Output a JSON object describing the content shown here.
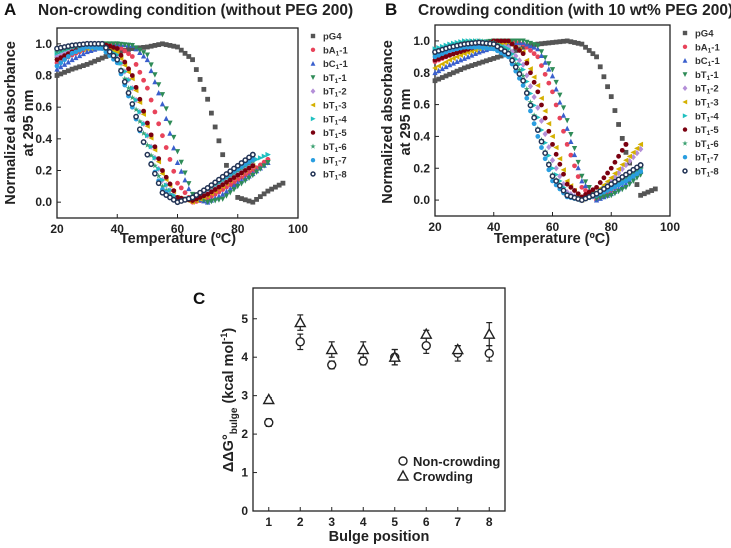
{
  "chart_data": [
    {
      "panel": "A",
      "type": "scatter",
      "title": "Non-crowding condition (without PEG 200)",
      "xlabel": "Temperature (ºC)",
      "ylabel": [
        "Normalized absorbance",
        "at 295 nm"
      ],
      "xlim": [
        20,
        100
      ],
      "ylim": [
        -0.1,
        1.1
      ],
      "xticks": [
        20,
        40,
        60,
        80,
        100
      ],
      "yticks": [
        0.0,
        0.2,
        0.4,
        0.6,
        0.8,
        1.0
      ],
      "legend_position": "right",
      "x": [
        20,
        25,
        30,
        35,
        40,
        45,
        50,
        55,
        60,
        65,
        70,
        75,
        80,
        85,
        90,
        95
      ],
      "series": [
        {
          "name": "pG4",
          "base": "pG4",
          "sub": "",
          "suffix": "",
          "color": "#555555",
          "marker": "square",
          "values": [
            0.8,
            0.84,
            0.87,
            0.91,
            0.95,
            0.97,
            0.98,
            1.0,
            0.98,
            0.9,
            0.65,
            0.3,
            0.03,
            0.0,
            0.07,
            0.12
          ]
        },
        {
          "name": "bA1-1",
          "base": "bA",
          "sub": "1",
          "suffix": "-1",
          "color": "#e8435a",
          "marker": "circle",
          "values": [
            0.88,
            0.93,
            0.97,
            1.0,
            0.99,
            0.92,
            0.72,
            0.42,
            0.12,
            0.0,
            0.02,
            0.08,
            0.14,
            0.2,
            0.27,
            null
          ]
        },
        {
          "name": "bC1-1",
          "base": "bC",
          "sub": "1",
          "suffix": "-1",
          "color": "#3a5fcd",
          "marker": "triangle-up",
          "values": [
            0.84,
            0.9,
            0.95,
            0.98,
            1.0,
            0.99,
            0.9,
            0.62,
            0.25,
            0.03,
            0.0,
            0.05,
            0.12,
            0.18,
            0.25,
            null
          ]
        },
        {
          "name": "bT1-1",
          "base": "bT",
          "sub": "1",
          "suffix": "-1",
          "color": "#2e8b57",
          "marker": "triangle-down",
          "values": [
            0.9,
            0.95,
            0.98,
            1.0,
            1.0,
            0.99,
            0.93,
            0.68,
            0.32,
            0.05,
            0.0,
            0.02,
            0.1,
            0.17,
            0.25,
            null
          ]
        },
        {
          "name": "bT1-2",
          "base": "bT",
          "sub": "1",
          "suffix": "-2",
          "color": "#b48fd8",
          "marker": "diamond",
          "values": [
            0.92,
            0.96,
            0.98,
            0.98,
            0.93,
            0.72,
            0.42,
            0.14,
            0.01,
            0.02,
            0.07,
            0.13,
            0.19,
            0.26,
            null,
            null
          ]
        },
        {
          "name": "bT1-3",
          "base": "bT",
          "sub": "1",
          "suffix": "-3",
          "color": "#d4b000",
          "marker": "triangle-left",
          "values": [
            0.9,
            0.95,
            0.97,
            0.98,
            0.95,
            0.78,
            0.48,
            0.18,
            0.03,
            0.0,
            0.04,
            0.1,
            0.17,
            0.23,
            null,
            null
          ]
        },
        {
          "name": "bT1-4",
          "base": "bT",
          "sub": "1",
          "suffix": "-4",
          "color": "#20c0c0",
          "marker": "triangle-right",
          "values": [
            0.94,
            0.98,
            0.99,
            0.98,
            0.93,
            0.72,
            0.42,
            0.14,
            0.01,
            0.03,
            0.08,
            0.14,
            0.2,
            0.26,
            0.3,
            null
          ]
        },
        {
          "name": "bT1-5",
          "base": "bT",
          "sub": "1",
          "suffix": "-5",
          "color": "#7a0010",
          "marker": "circle",
          "values": [
            0.9,
            0.95,
            0.98,
            1.0,
            0.97,
            0.8,
            0.5,
            0.2,
            0.03,
            0.01,
            0.05,
            0.11,
            0.17,
            0.23,
            null,
            null
          ]
        },
        {
          "name": "bT1-6",
          "base": "bT",
          "sub": "1",
          "suffix": "-6",
          "color": "#3aa070",
          "marker": "star",
          "values": [
            0.95,
            0.98,
            0.99,
            0.98,
            0.9,
            0.66,
            0.36,
            0.1,
            0.0,
            0.03,
            0.08,
            0.14,
            0.2,
            0.26,
            null,
            null
          ]
        },
        {
          "name": "bT1-7",
          "base": "bT",
          "sub": "1",
          "suffix": "-7",
          "color": "#2a9ee0",
          "marker": "circle",
          "values": [
            0.86,
            0.94,
            0.98,
            0.97,
            0.88,
            0.6,
            0.3,
            0.08,
            0.0,
            0.03,
            0.09,
            0.15,
            0.21,
            0.27,
            null,
            null
          ]
        },
        {
          "name": "bT1-8",
          "base": "bT",
          "sub": "1",
          "suffix": "-8",
          "color": "#223355",
          "marker": "ring",
          "values": [
            0.97,
            0.99,
            1.0,
            1.0,
            0.9,
            0.62,
            0.3,
            0.06,
            0.0,
            0.03,
            0.09,
            0.16,
            0.23,
            0.3,
            null,
            null
          ]
        }
      ]
    },
    {
      "panel": "B",
      "type": "scatter",
      "title": "Crowding condition (with 10 wt% PEG 200)",
      "xlabel": "Temperature (ºC)",
      "ylabel": [
        "Normalized absorbance",
        "at 295 nm"
      ],
      "xlim": [
        20,
        100
      ],
      "ylim": [
        -0.1,
        1.1
      ],
      "xticks": [
        20,
        40,
        60,
        80,
        100
      ],
      "yticks": [
        0.0,
        0.2,
        0.4,
        0.6,
        0.8,
        1.0
      ],
      "legend_position": "right",
      "x": [
        20,
        25,
        30,
        35,
        40,
        45,
        50,
        55,
        60,
        65,
        70,
        75,
        80,
        85,
        90,
        95
      ],
      "series": [
        {
          "name": "pG4",
          "base": "pG4",
          "sub": "",
          "suffix": "",
          "color": "#555555",
          "marker": "square",
          "values": [
            0.75,
            0.79,
            0.83,
            0.86,
            0.89,
            0.92,
            0.96,
            0.98,
            0.99,
            1.0,
            0.98,
            0.9,
            0.65,
            0.3,
            0.03,
            0.07
          ]
        },
        {
          "name": "bA1-1",
          "base": "bA",
          "sub": "1",
          "suffix": "-1",
          "color": "#e8435a",
          "marker": "circle",
          "values": [
            0.87,
            0.91,
            0.95,
            0.98,
            1.0,
            1.0,
            0.98,
            0.9,
            0.68,
            0.35,
            0.08,
            0.0,
            0.06,
            0.13,
            0.2,
            null
          ]
        },
        {
          "name": "bC1-1",
          "base": "bC",
          "sub": "1",
          "suffix": "-1",
          "color": "#3a5fcd",
          "marker": "triangle-up",
          "values": [
            0.8,
            0.85,
            0.89,
            0.93,
            0.96,
            0.98,
            0.99,
            0.95,
            0.78,
            0.45,
            0.12,
            0.0,
            0.04,
            0.1,
            0.18,
            null
          ]
        },
        {
          "name": "bT1-1",
          "base": "bT",
          "sub": "1",
          "suffix": "-1",
          "color": "#2e8b57",
          "marker": "triangle-down",
          "values": [
            0.9,
            0.94,
            0.97,
            0.99,
            1.0,
            1.0,
            1.0,
            0.97,
            0.82,
            0.5,
            0.15,
            0.01,
            0.03,
            0.08,
            0.16,
            null
          ]
        },
        {
          "name": "bT1-2",
          "base": "bT",
          "sub": "1",
          "suffix": "-2",
          "color": "#b48fd8",
          "marker": "diamond",
          "values": [
            0.88,
            0.92,
            0.95,
            0.97,
            0.98,
            0.96,
            0.85,
            0.58,
            0.25,
            0.05,
            0.0,
            0.04,
            0.12,
            0.22,
            0.32,
            null
          ]
        },
        {
          "name": "bT1-3",
          "base": "bT",
          "sub": "1",
          "suffix": "-3",
          "color": "#d4b000",
          "marker": "triangle-left",
          "values": [
            0.83,
            0.88,
            0.92,
            0.95,
            0.98,
            0.99,
            0.93,
            0.72,
            0.4,
            0.12,
            0.0,
            0.05,
            0.14,
            0.25,
            0.35,
            null
          ]
        },
        {
          "name": "bT1-4",
          "base": "bT",
          "sub": "1",
          "suffix": "-4",
          "color": "#20c0c0",
          "marker": "triangle-right",
          "values": [
            0.95,
            0.98,
            1.0,
            1.0,
            0.99,
            0.95,
            0.82,
            0.52,
            0.2,
            0.04,
            0.0,
            0.04,
            0.1,
            0.15,
            0.2,
            null
          ]
        },
        {
          "name": "bT1-5",
          "base": "bT",
          "sub": "1",
          "suffix": "-5",
          "color": "#7a0010",
          "marker": "circle",
          "values": [
            0.88,
            0.91,
            0.94,
            0.97,
            1.0,
            1.0,
            0.92,
            0.68,
            0.35,
            0.1,
            0.02,
            0.08,
            0.2,
            0.35,
            null,
            null
          ]
        },
        {
          "name": "bT1-6",
          "base": "bT",
          "sub": "1",
          "suffix": "-6",
          "color": "#3aa070",
          "marker": "star",
          "values": [
            0.92,
            0.96,
            0.99,
            1.0,
            0.99,
            0.93,
            0.78,
            0.45,
            0.16,
            0.03,
            0.0,
            0.03,
            0.08,
            0.14,
            0.2,
            null
          ]
        },
        {
          "name": "bT1-7",
          "base": "bT",
          "sub": "1",
          "suffix": "-7",
          "color": "#2a9ee0",
          "marker": "circle",
          "values": [
            0.9,
            0.94,
            0.96,
            0.96,
            0.95,
            0.9,
            0.72,
            0.4,
            0.12,
            0.02,
            0.0,
            0.03,
            0.07,
            0.12,
            0.18,
            null
          ]
        },
        {
          "name": "bT1-8",
          "base": "bT",
          "sub": "1",
          "suffix": "-8",
          "color": "#223355",
          "marker": "ring",
          "values": [
            0.93,
            0.96,
            0.98,
            0.99,
            0.98,
            0.92,
            0.75,
            0.44,
            0.15,
            0.03,
            0.0,
            0.04,
            0.1,
            0.16,
            0.22,
            null
          ]
        }
      ]
    },
    {
      "panel": "C",
      "type": "scatter",
      "title": "",
      "xlabel": "Bulge position",
      "ylabel": {
        "prefix": "ΔΔG°",
        "sub": "bulge",
        "unit": " (kcal mol",
        "sup": "-1",
        "close": ")"
      },
      "xlim": [
        0.5,
        8.5
      ],
      "ylim": [
        0,
        5.8
      ],
      "xticks": [
        1,
        2,
        3,
        4,
        5,
        6,
        7,
        8
      ],
      "yticks": [
        0,
        1,
        2,
        3,
        4,
        5
      ],
      "legend_position": "bottom-right",
      "series": [
        {
          "name": "Non-crowding",
          "marker": "open-circle",
          "values": [
            2.3,
            4.4,
            3.8,
            3.9,
            4.0,
            4.3,
            4.1,
            4.1
          ],
          "errors": [
            0.1,
            0.2,
            0.1,
            0.1,
            0.2,
            0.2,
            0.2,
            0.2
          ]
        },
        {
          "name": "Crowding",
          "marker": "open-triangle",
          "values": [
            2.9,
            4.9,
            4.2,
            4.2,
            4.0,
            4.6,
            4.2,
            4.6
          ],
          "errors": [
            0.05,
            0.2,
            0.2,
            0.2,
            0.2,
            0.1,
            0.1,
            0.3
          ]
        }
      ]
    }
  ]
}
